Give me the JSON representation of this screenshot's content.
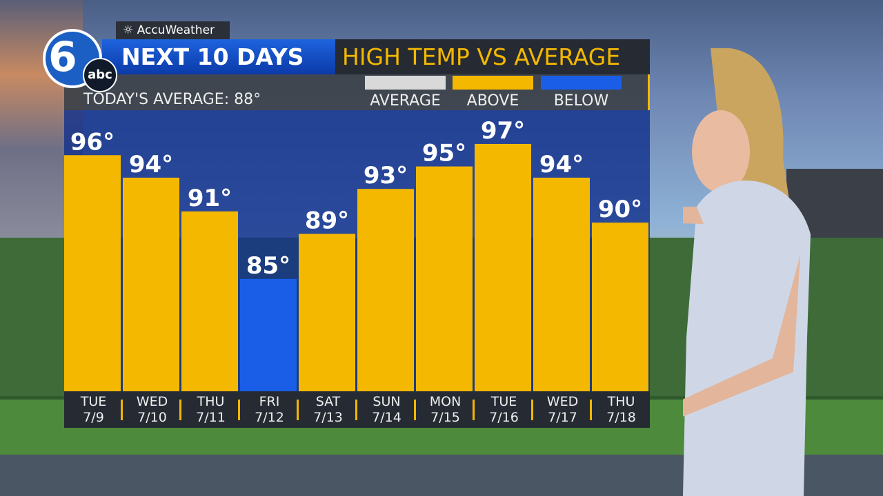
{
  "branding": {
    "station_logo": "6 abc",
    "logo_num": "6",
    "logo_abc": "abc",
    "accuweather": "AccuWeather"
  },
  "header": {
    "title": "NEXT 10 DAYS",
    "subtitle": "HIGH TEMP VS AVERAGE",
    "today_average": "TODAY'S AVERAGE: 88°"
  },
  "legend": [
    {
      "label": "AVERAGE",
      "color": "#d9d9d9"
    },
    {
      "label": "ABOVE",
      "color": "#f5b800"
    },
    {
      "label": "BELOW",
      "color": "#1a5ee8"
    }
  ],
  "chart_data": {
    "type": "bar",
    "title": "HIGH TEMP VS AVERAGE",
    "categories": [
      {
        "day": "TUE",
        "date": "7/9"
      },
      {
        "day": "WED",
        "date": "7/10"
      },
      {
        "day": "THU",
        "date": "7/11"
      },
      {
        "day": "FRI",
        "date": "7/12"
      },
      {
        "day": "SAT",
        "date": "7/13"
      },
      {
        "day": "SUN",
        "date": "7/14"
      },
      {
        "day": "MON",
        "date": "7/15"
      },
      {
        "day": "TUE",
        "date": "7/16"
      },
      {
        "day": "WED",
        "date": "7/17"
      },
      {
        "day": "THU",
        "date": "7/18"
      }
    ],
    "values": [
      96,
      94,
      91,
      85,
      89,
      93,
      95,
      97,
      94,
      90
    ],
    "labels": [
      "96°",
      "94°",
      "91°",
      "85°",
      "89°",
      "93°",
      "95°",
      "97°",
      "94°",
      "90°"
    ],
    "average": 88,
    "unit": "°F",
    "ylim": [
      75,
      100
    ],
    "grid": false,
    "colors": {
      "above": "#f5b800",
      "below": "#1a5ee8"
    }
  }
}
